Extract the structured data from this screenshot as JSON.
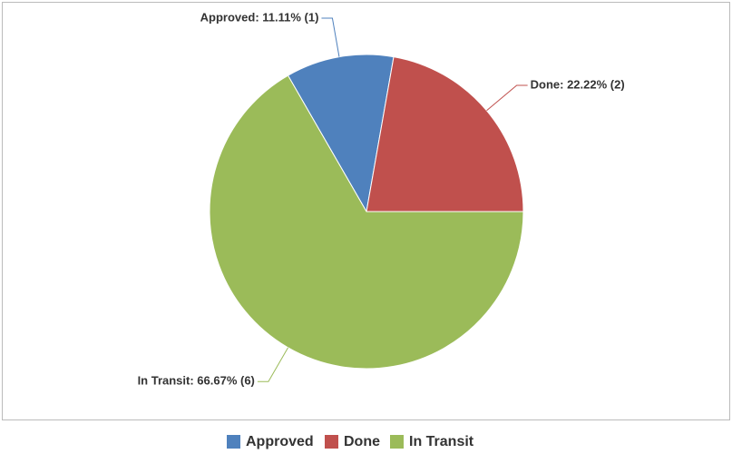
{
  "chart_data": {
    "type": "pie",
    "categories": [
      "Approved",
      "Done",
      "In Transit"
    ],
    "values": [
      11.11,
      22.22,
      66.67
    ],
    "value_labels": [
      "Approved: 11.11% (1)",
      "Done: 22.22% (2)",
      "In Transit: 66.67% (6)"
    ],
    "colors": [
      "#4f81bd",
      "#c0504d",
      "#9bbb59"
    ],
    "legend": "bottom"
  }
}
